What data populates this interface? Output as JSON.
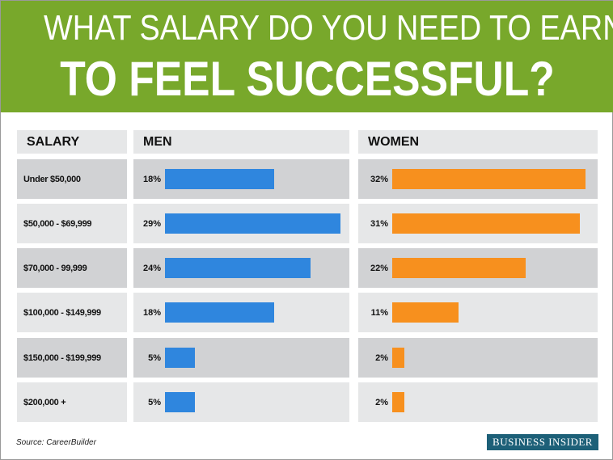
{
  "header": {
    "line1": "WHAT SALARY DO YOU NEED TO EARN",
    "line2": "TO FEEL SUCCESSFUL?"
  },
  "chart_data": {
    "type": "bar",
    "title": "WHAT SALARY DO YOU NEED TO EARN TO FEEL SUCCESSFUL?",
    "columns": [
      "SALARY",
      "MEN",
      "WOMEN"
    ],
    "categories": [
      "Under $50,000",
      "$50,000 - $69,999",
      "$70,000 - 99,999",
      "$100,000 - $149,999",
      "$150,000  - $199,999",
      "$200,000 +"
    ],
    "series": [
      {
        "name": "MEN",
        "values": [
          18,
          29,
          24,
          18,
          5,
          5
        ],
        "labels": [
          "18%",
          "29%",
          "24%",
          "18%",
          "5%",
          "5%"
        ],
        "color": "#2f86de"
      },
      {
        "name": "WOMEN",
        "values": [
          32,
          31,
          22,
          11,
          2,
          2
        ],
        "labels": [
          "32%",
          "31%",
          "22%",
          "11%",
          "2%",
          "2%"
        ],
        "color": "#f7901e"
      }
    ]
  },
  "colors": {
    "header": "#78a82b",
    "row_dark": "#d1d2d4",
    "row_light": "#e6e7e8",
    "logo": "#1d6078"
  },
  "footer": {
    "source": "Source: CareerBuilder",
    "logo": "BUSINESS INSIDER"
  }
}
